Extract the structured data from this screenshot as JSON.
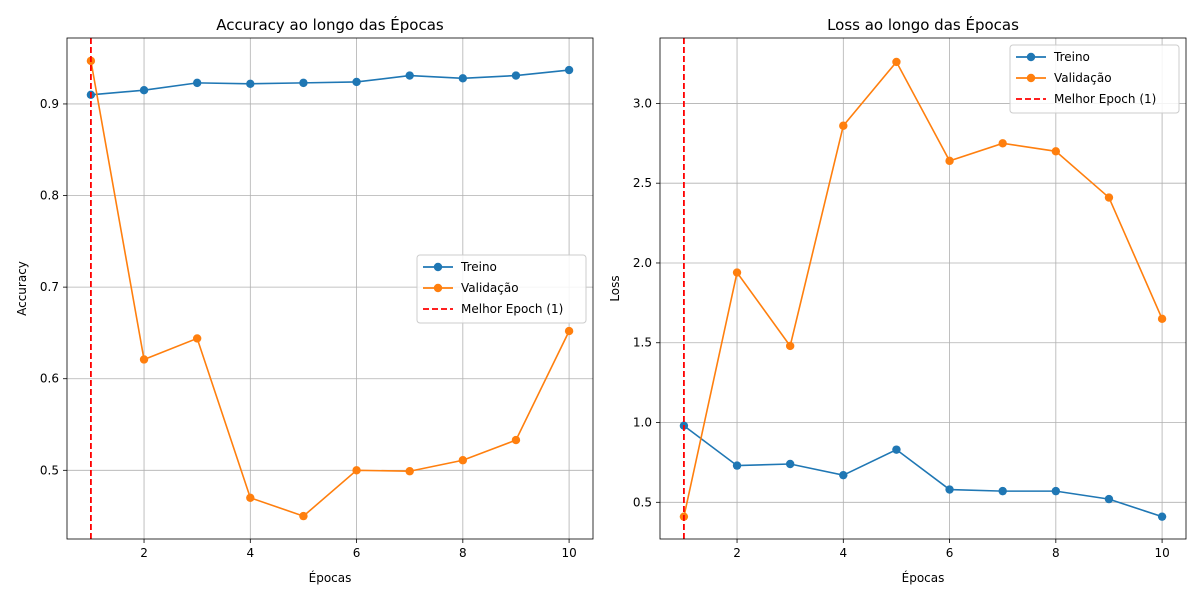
{
  "chart_data": [
    {
      "type": "line",
      "title": "Accuracy ao longo das Épocas",
      "xlabel": "Épocas",
      "ylabel": "Accuracy",
      "x": [
        1,
        2,
        3,
        4,
        5,
        6,
        7,
        8,
        9,
        10
      ],
      "xticks": [
        2,
        4,
        6,
        8,
        10
      ],
      "yticks": [
        0.5,
        0.6,
        0.7,
        0.8,
        0.9
      ],
      "xlim": [
        0.55,
        10.45
      ],
      "ylim": [
        0.425,
        0.972
      ],
      "grid": true,
      "legend_position": "center-right",
      "series": [
        {
          "name": "Treino",
          "color": "#1f77b4",
          "values": [
            0.91,
            0.915,
            0.923,
            0.922,
            0.923,
            0.924,
            0.931,
            0.928,
            0.931,
            0.937
          ]
        },
        {
          "name": "Validação",
          "color": "#ff7f0e",
          "values": [
            0.947,
            0.621,
            0.644,
            0.47,
            0.45,
            0.5,
            0.499,
            0.511,
            0.533,
            0.652
          ]
        }
      ],
      "vline": {
        "x": 1,
        "label": "Melhor Epoch (1)",
        "color": "#ff0000"
      }
    },
    {
      "type": "line",
      "title": "Loss ao longo das Épocas",
      "xlabel": "Épocas",
      "ylabel": "Loss",
      "x": [
        1,
        2,
        3,
        4,
        5,
        6,
        7,
        8,
        9,
        10
      ],
      "xticks": [
        2,
        4,
        6,
        8,
        10
      ],
      "yticks": [
        0.5,
        1.0,
        1.5,
        2.0,
        2.5,
        3.0
      ],
      "ytick_labels": [
        "0.5",
        "1.0",
        "1.5",
        "2.0",
        "2.5",
        "3.0"
      ],
      "xlim": [
        0.55,
        10.45
      ],
      "ylim": [
        0.27,
        3.41
      ],
      "grid": true,
      "legend_position": "top-right",
      "series": [
        {
          "name": "Treino",
          "color": "#1f77b4",
          "values": [
            0.98,
            0.73,
            0.74,
            0.67,
            0.83,
            0.58,
            0.57,
            0.57,
            0.52,
            0.41
          ]
        },
        {
          "name": "Validação",
          "color": "#ff7f0e",
          "values": [
            0.41,
            1.94,
            1.48,
            2.86,
            3.26,
            2.64,
            2.75,
            2.7,
            2.41,
            1.65
          ]
        }
      ],
      "vline": {
        "x": 1,
        "label": "Melhor Epoch (1)",
        "color": "#ff0000"
      }
    }
  ]
}
